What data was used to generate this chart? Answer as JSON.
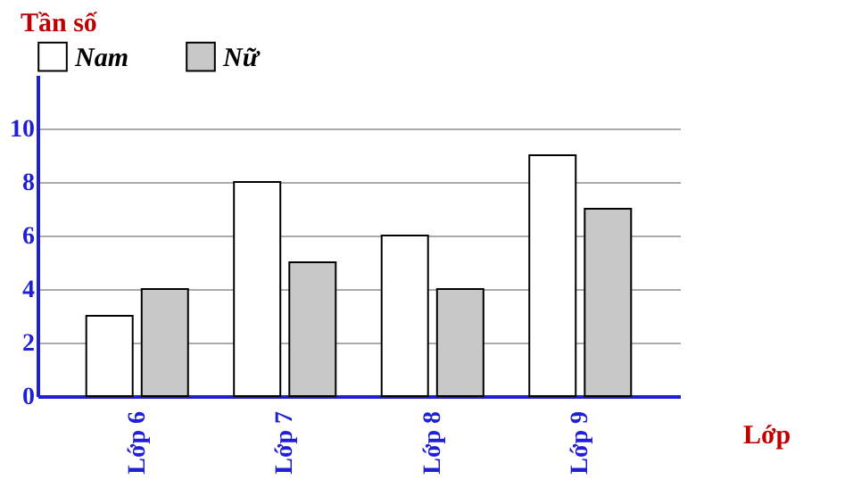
{
  "chart_data": {
    "type": "bar",
    "xlabel": "Lớp",
    "ylabel": "Tần số",
    "categories": [
      "Lớp 6",
      "Lớp 7",
      "Lớp 8",
      "Lớp 9"
    ],
    "series": [
      {
        "name": "Nam",
        "color": "#ffffff",
        "values": [
          3,
          8,
          6,
          9
        ]
      },
      {
        "name": "Nữ",
        "color": "#c8c8c8",
        "values": [
          4,
          5,
          4,
          7
        ]
      }
    ],
    "ylim": [
      0,
      12
    ],
    "yticks": [
      0,
      2,
      4,
      6,
      8,
      10
    ],
    "grid": "y",
    "legend": "top"
  }
}
